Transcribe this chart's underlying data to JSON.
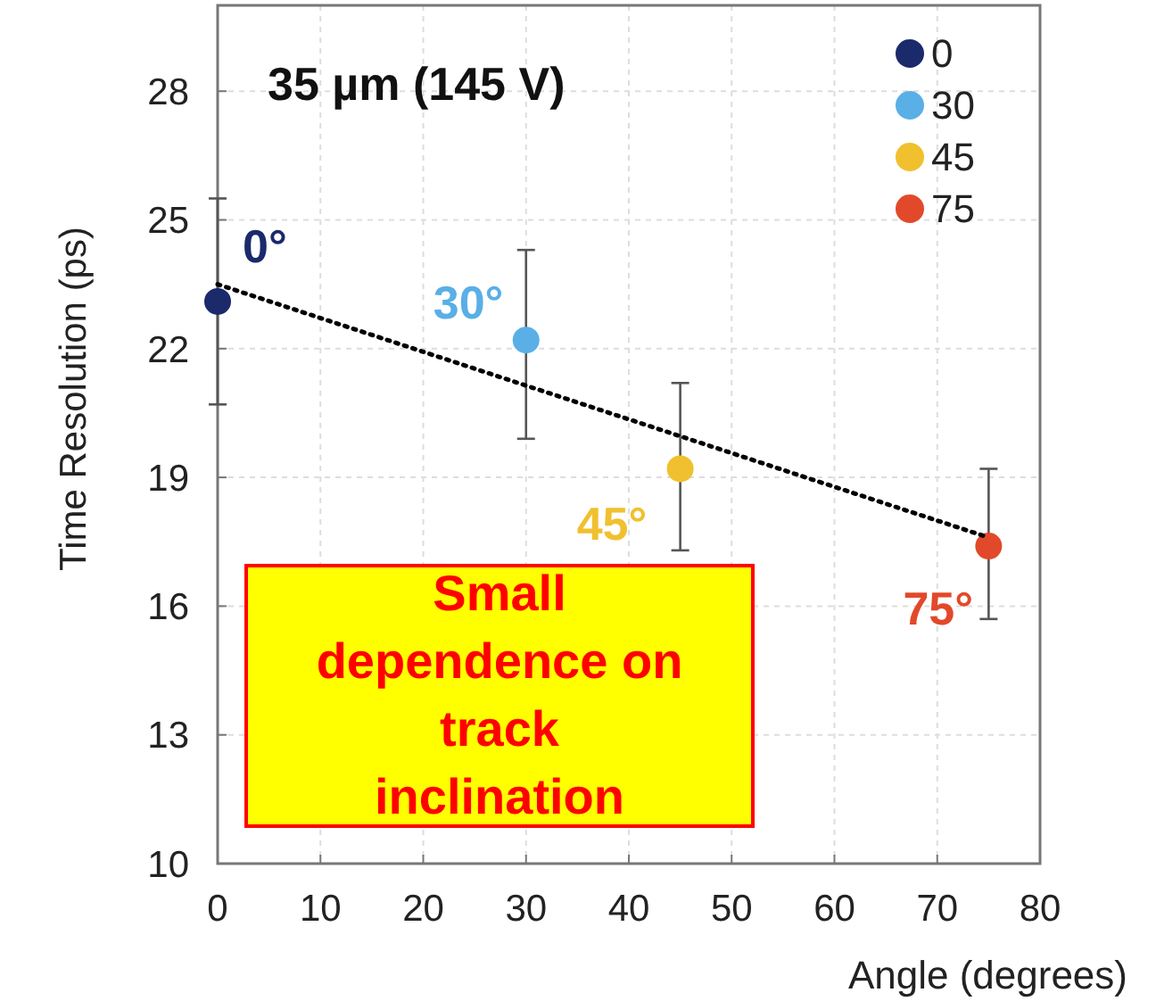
{
  "chart_data": {
    "type": "scatter",
    "xlabel": "Angle (degrees)",
    "ylabel": "Time Resolution (ps)",
    "xlim": [
      0,
      80
    ],
    "xticks": [
      0,
      10,
      20,
      30,
      40,
      50,
      60,
      70,
      80
    ],
    "ylim": [
      10,
      30
    ],
    "yticks": [
      10,
      13,
      16,
      19,
      22,
      25,
      28
    ],
    "grid": true,
    "legend": "top right",
    "marker": "circle",
    "series": [
      {
        "name": "0",
        "color": "#1b2a6b",
        "x": [
          0
        ],
        "values": [
          23.1
        ],
        "errors": [
          [
            20.7,
            25.5
          ]
        ]
      },
      {
        "name": "30",
        "color": "#5aafe6",
        "x": [
          30
        ],
        "values": [
          22.2
        ],
        "errors": [
          [
            19.9,
            24.3
          ]
        ]
      },
      {
        "name": "45",
        "color": "#f0c02e",
        "x": [
          45
        ],
        "values": [
          19.2
        ],
        "errors": [
          [
            17.3,
            21.2
          ]
        ]
      },
      {
        "name": "75",
        "color": "#e2492a",
        "x": [
          75
        ],
        "values": [
          17.4
        ],
        "errors": [
          [
            15.7,
            19.2
          ]
        ]
      },
      {
        "type": "line",
        "color": "#000000",
        "line_style": "dotted",
        "marker": "none",
        "x": [
          0,
          75
        ],
        "values": [
          23.5,
          17.6
        ]
      }
    ],
    "annotations": [
      "35 µm (145 V)",
      {
        "text": "0°",
        "x": 0,
        "y": 23.1
      },
      {
        "text": "30°",
        "x": 30,
        "y": 22.2
      },
      {
        "text": "45°",
        "x": 45,
        "y": 19.2
      },
      {
        "text": "75°",
        "x": 75,
        "y": 17.4
      },
      "Small dependence on track inclination"
    ]
  }
}
